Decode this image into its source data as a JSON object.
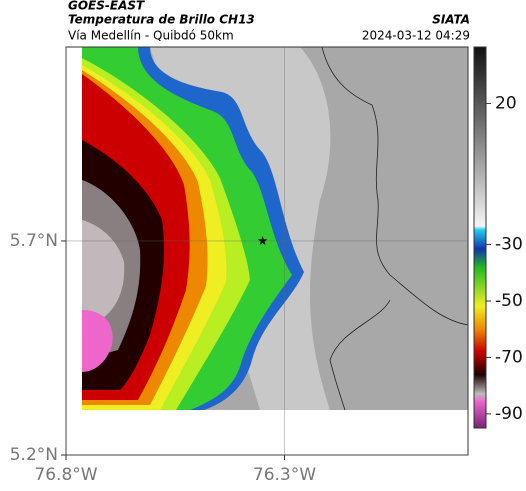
{
  "header": {
    "satellite": "GOES-EAST",
    "title": "Temperatura de Brillo CH13",
    "subtitle": "Vía Medellín - Quibdó 50km",
    "source": "SIATA",
    "datetime": "2024-03-12 04:29"
  },
  "map": {
    "xlim": [
      -76.8,
      -75.88
    ],
    "ylim": [
      5.2,
      6.153
    ],
    "xticks": [
      {
        "value": -76.8,
        "label": "76.8°W"
      },
      {
        "value": -76.3,
        "label": "76.3°W"
      }
    ],
    "yticks": [
      {
        "value": 5.7,
        "label": "5.7°N"
      },
      {
        "value": 5.2,
        "label": "5.2°N"
      }
    ],
    "marker": {
      "lon": -76.35,
      "lat": 5.7
    }
  },
  "colorbar": {
    "clim": [
      -95,
      40
    ],
    "ticks": [
      20,
      -30,
      -50,
      -70,
      -90
    ]
  }
}
